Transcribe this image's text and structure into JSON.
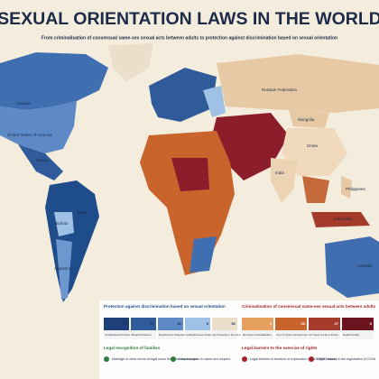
{
  "header": {
    "title": "SEXUAL ORIENTATION LAWS IN THE WORLD",
    "subtitle": "From criminalisation of consensual same-sex sexual acts between adults to protection against discrimination based on sexual orientation"
  },
  "map": {
    "labels": [
      "Canada",
      "United States of America",
      "Mexico",
      "Brasil",
      "Bolivia",
      "Argentina",
      "Russian Federation",
      "Mongolia",
      "China",
      "India",
      "Philippines",
      "Indonesia",
      "Australia"
    ]
  },
  "legend": {
    "protection": {
      "heading": "Protection against discrimination based on sexual orientation",
      "items": [
        {
          "label": "Constitutional Protection",
          "count": "11"
        },
        {
          "label": "Broad Protection",
          "count": "57"
        },
        {
          "label": "Employment Protection",
          "count": "81"
        },
        {
          "label": "Limited/Uneven Protection",
          "count": "9"
        },
        {
          "label": "No Protection / No Crim.",
          "count": "52"
        }
      ]
    },
    "criminalisation": {
      "heading": "Criminalisation of consensual same-sex sexual acts between adults",
      "items": [
        {
          "label": "De Facto Criminalisation",
          "count": "2"
        },
        {
          "label": "Up to 8 Years Imprisonment",
          "count": "30"
        },
        {
          "label": "10 Years to Life in Prison",
          "count": "27"
        },
        {
          "label": "Death Penalty",
          "count": "6"
        }
      ]
    },
    "families": {
      "heading": "Legal recognition of families",
      "items": [
        "Marriage or other forms of legal union for same-sex couples",
        "Adoption open to same-sex couples"
      ]
    },
    "barriers": {
      "heading": "Legal barriers to the exercise of rights",
      "items": [
        "Legal barriers to freedom of expression on SOGIESC issues",
        "Legal barriers to the registration of CSOs"
      ]
    }
  }
}
